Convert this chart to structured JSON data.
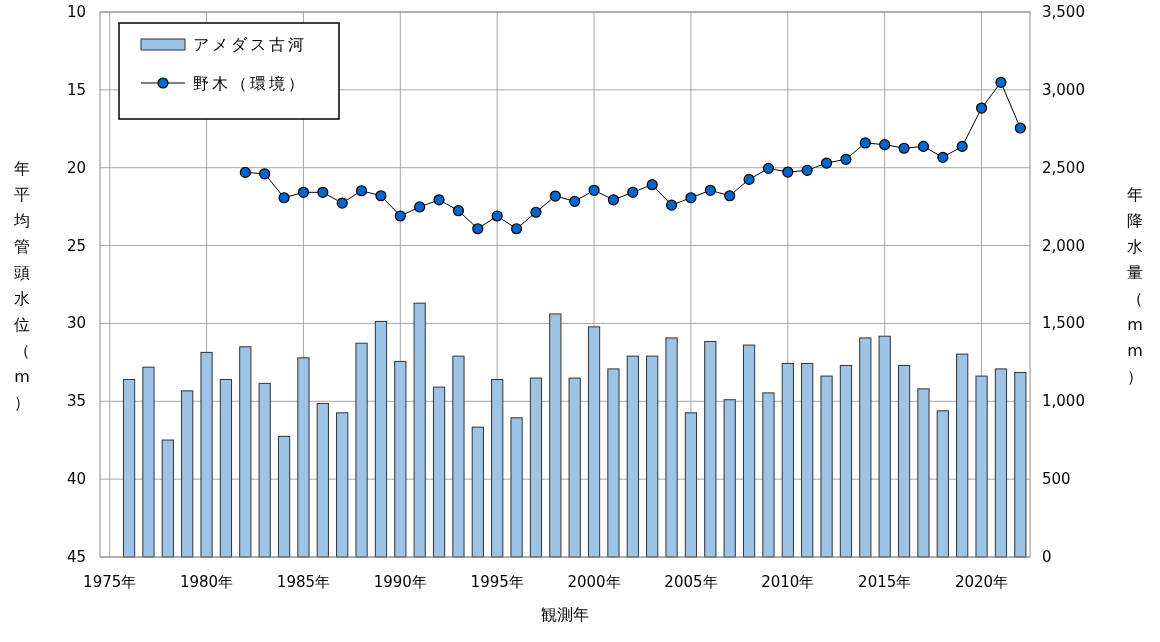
{
  "chart_data": {
    "type": "bar",
    "xlabel": "観測年",
    "ylabel": "年平均管頭水位（m）",
    "y2label": "年降水量（mm）",
    "xlim": [
      1974.5,
      2022.5
    ],
    "xticks": [
      {
        "value": 1975,
        "label": "1975年"
      },
      {
        "value": 1980,
        "label": "1980年"
      },
      {
        "value": 1985,
        "label": "1985年"
      },
      {
        "value": 1990,
        "label": "1990年"
      },
      {
        "value": 1995,
        "label": "1995年"
      },
      {
        "value": 2000,
        "label": "2000年"
      },
      {
        "value": 2005,
        "label": "2005年"
      },
      {
        "value": 2010,
        "label": "2010年"
      },
      {
        "value": 2015,
        "label": "2015年"
      },
      {
        "value": 2020,
        "label": "2020年"
      }
    ],
    "ylim": [
      45,
      10
    ],
    "yticks": [
      10,
      15,
      20,
      25,
      30,
      35,
      40,
      45
    ],
    "y2lim": [
      0,
      3500
    ],
    "y2ticks": [
      0,
      500,
      {
        "value": 1000,
        "label": "1,000"
      },
      {
        "value": 1500,
        "label": "1,500"
      },
      {
        "value": 2000,
        "label": "2,000"
      },
      {
        "value": 2500,
        "label": "2,500"
      },
      {
        "value": 3000,
        "label": "3,000"
      },
      {
        "value": 3500,
        "label": "3,500"
      }
    ],
    "grid": true,
    "legend": "top left",
    "series": [
      {
        "name": "アメダス古河",
        "axis": "y2",
        "color": "#9dc3e6",
        "x": [
          1976,
          1977,
          1978,
          1979,
          1980,
          1981,
          1982,
          1983,
          1984,
          1985,
          1986,
          1987,
          1988,
          1989,
          1990,
          1991,
          1992,
          1993,
          1994,
          1995,
          1996,
          1997,
          1998,
          1999,
          2000,
          2001,
          2002,
          2003,
          2004,
          2005,
          2006,
          2007,
          2008,
          2009,
          2010,
          2011,
          2012,
          2013,
          2014,
          2015,
          2016,
          2017,
          2018,
          2019,
          2020,
          2021,
          2022
        ],
        "values": [
          1140,
          1219,
          751,
          1067,
          1314,
          1140,
          1350,
          1115,
          775,
          1279,
          986,
          926,
          1373,
          1513,
          1256,
          1630,
          1091,
          1290,
          834,
          1140,
          894,
          1149,
          1561,
          1149,
          1478,
          1208,
          1290,
          1290,
          1407,
          926,
          1384,
          1010,
          1361,
          1054,
          1243,
          1243,
          1162,
          1230,
          1407,
          1418,
          1230,
          1080,
          939,
          1303,
          1162,
          1208,
          1185
        ]
      },
      {
        "name": "野木（環境）",
        "type": "line",
        "axis": "y",
        "color": "#0066cc",
        "marker": "circle",
        "line_style": "solid",
        "x": [
          1982,
          1983,
          1984,
          1985,
          1986,
          1987,
          1988,
          1989,
          1990,
          1991,
          1992,
          1993,
          1994,
          1995,
          1996,
          1997,
          1998,
          1999,
          2000,
          2001,
          2002,
          2003,
          2004,
          2005,
          2006,
          2007,
          2008,
          2009,
          2010,
          2011,
          2012,
          2013,
          2014,
          2015,
          2016,
          2017,
          2018,
          2019,
          2020,
          2021,
          2022
        ],
        "values": [
          20.3,
          20.39,
          21.93,
          21.58,
          21.58,
          22.27,
          21.48,
          21.8,
          23.1,
          22.52,
          22.06,
          22.76,
          23.92,
          23.1,
          23.92,
          22.86,
          21.82,
          22.16,
          21.45,
          22.06,
          21.58,
          21.09,
          22.4,
          21.93,
          21.45,
          21.8,
          20.75,
          20.04,
          20.28,
          20.17,
          19.7,
          19.46,
          18.41,
          18.52,
          18.75,
          18.63,
          19.33,
          18.63,
          16.17,
          14.52,
          17.45
        ]
      }
    ]
  }
}
